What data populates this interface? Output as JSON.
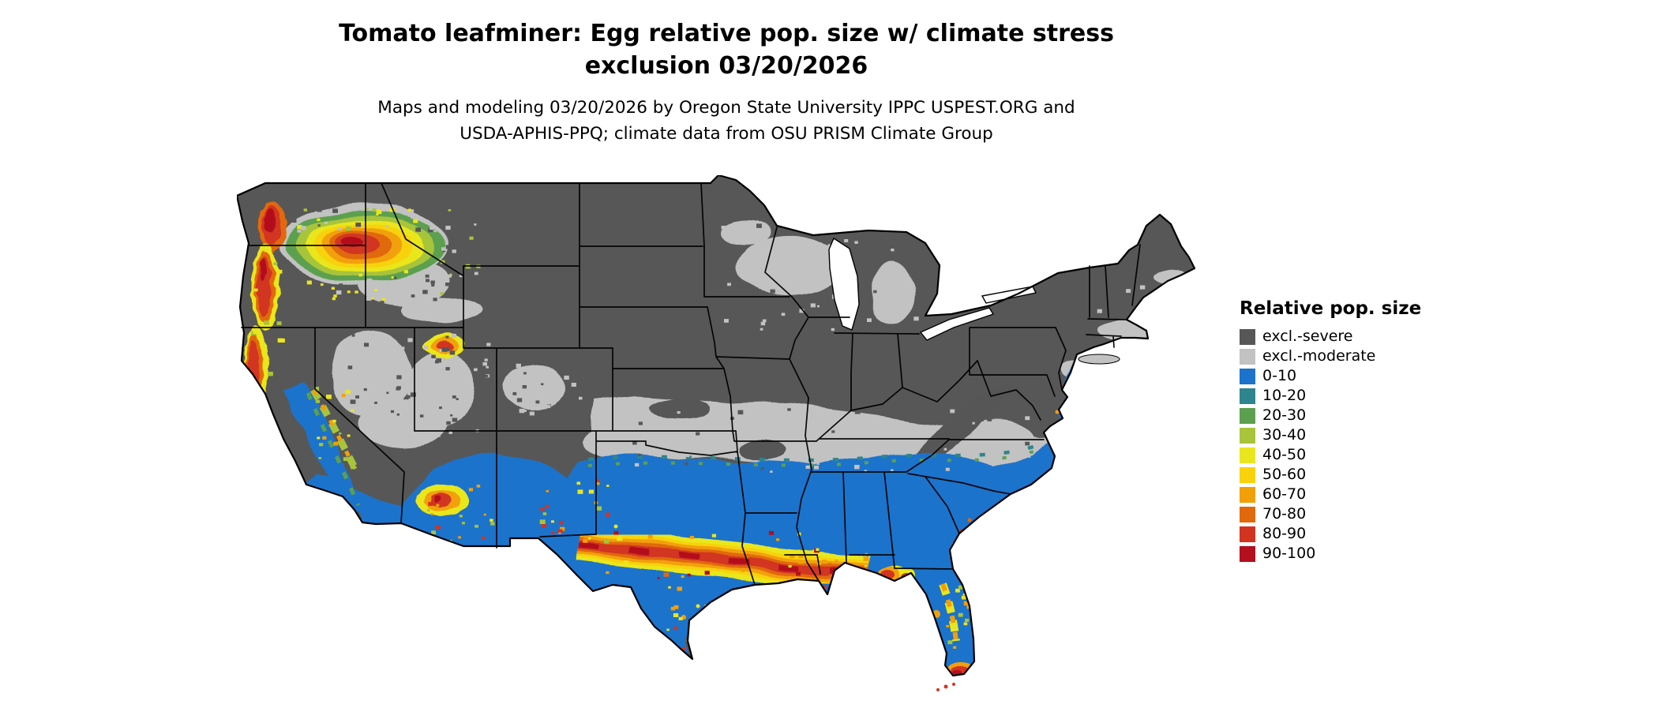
{
  "figure": {
    "title_lines": [
      "Tomato leafminer: Egg relative pop. size w/ climate stress",
      "exclusion 03/20/2026"
    ],
    "subtitle_lines": [
      "Maps and modeling 03/20/2026 by Oregon State University IPPC USPEST.ORG and",
      "USDA-APHIS-PPQ; climate data from OSU PRISM Climate Group"
    ]
  },
  "legend": {
    "title": "Relative pop. size",
    "entries": [
      {
        "label": "excl.-severe",
        "color": "#575757"
      },
      {
        "label": "excl.-moderate",
        "color": "#c2c2c2"
      },
      {
        "label": "0-10",
        "color": "#1c73cb"
      },
      {
        "label": "10-20",
        "color": "#2f858d"
      },
      {
        "label": "20-30",
        "color": "#5ca04f"
      },
      {
        "label": "30-40",
        "color": "#a7c43b"
      },
      {
        "label": "40-50",
        "color": "#eae61e"
      },
      {
        "label": "50-60",
        "color": "#f8d20a"
      },
      {
        "label": "60-70",
        "color": "#f2a007"
      },
      {
        "label": "70-80",
        "color": "#e1690a"
      },
      {
        "label": "80-90",
        "color": "#d23420"
      },
      {
        "label": "90-100",
        "color": "#b30f1c"
      }
    ]
  },
  "map": {
    "region": "contiguous United States"
  }
}
